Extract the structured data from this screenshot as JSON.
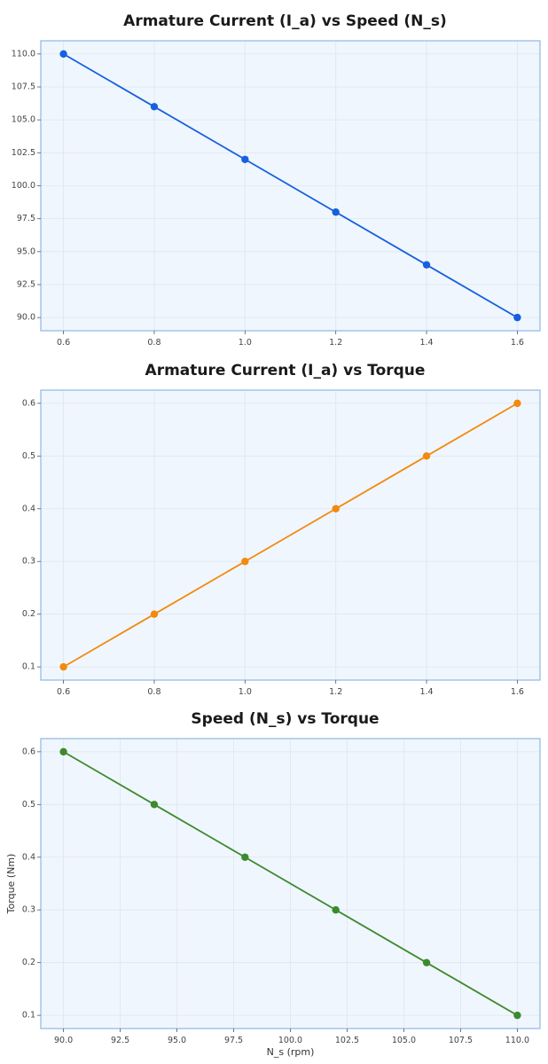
{
  "chart_data": [
    {
      "type": "line",
      "title": "Armature Current (I_a) vs Speed (N_s)",
      "xlabel": "",
      "ylabel": "",
      "x": [
        0.6,
        0.8,
        1.0,
        1.2,
        1.4,
        1.6
      ],
      "series": [
        {
          "values": [
            110.0,
            106.0,
            102.0,
            98.0,
            94.0,
            90.0
          ],
          "color": "#1560e0"
        }
      ],
      "xlim": [
        0.55,
        1.65
      ],
      "ylim": [
        89.0,
        111.0
      ],
      "xticks": [
        0.6,
        0.8,
        1.0,
        1.2,
        1.4,
        1.6
      ],
      "xtick_labels": [
        "0.6",
        "0.8",
        "1.0",
        "1.2",
        "1.4",
        "1.6"
      ],
      "yticks": [
        90.0,
        92.5,
        95.0,
        97.5,
        100.0,
        102.5,
        105.0,
        107.5,
        110.0
      ],
      "ytick_labels": [
        "90.0",
        "92.5",
        "95.0",
        "97.5",
        "100.0",
        "102.5",
        "105.0",
        "107.5",
        "110.0"
      ],
      "grid": true
    },
    {
      "type": "line",
      "title": "Armature Current (I_a) vs Torque",
      "xlabel": "",
      "ylabel": "",
      "x": [
        0.6,
        0.8,
        1.0,
        1.2,
        1.4,
        1.6
      ],
      "series": [
        {
          "values": [
            0.1,
            0.2,
            0.3,
            0.4,
            0.5,
            0.6
          ],
          "color": "#f28a0e"
        }
      ],
      "xlim": [
        0.55,
        1.65
      ],
      "ylim": [
        0.075,
        0.625
      ],
      "xticks": [
        0.6,
        0.8,
        1.0,
        1.2,
        1.4,
        1.6
      ],
      "xtick_labels": [
        "0.6",
        "0.8",
        "1.0",
        "1.2",
        "1.4",
        "1.6"
      ],
      "yticks": [
        0.1,
        0.2,
        0.3,
        0.4,
        0.5,
        0.6
      ],
      "ytick_labels": [
        "0.1",
        "0.2",
        "0.3",
        "0.4",
        "0.5",
        "0.6"
      ],
      "grid": true
    },
    {
      "type": "line",
      "title": "Speed (N_s) vs Torque",
      "xlabel": "N_s (rpm)",
      "ylabel": "Torque (Nm)",
      "x": [
        90.0,
        94.0,
        98.0,
        102.0,
        106.0,
        110.0
      ],
      "series": [
        {
          "values": [
            0.6,
            0.5,
            0.4,
            0.3,
            0.2,
            0.1
          ],
          "color": "#3c8a2e"
        }
      ],
      "xlim": [
        89.0,
        111.0
      ],
      "ylim": [
        0.075,
        0.625
      ],
      "xticks": [
        90.0,
        92.5,
        95.0,
        97.5,
        100.0,
        102.5,
        105.0,
        107.5,
        110.0
      ],
      "xtick_labels": [
        "90.0",
        "92.5",
        "95.0",
        "97.5",
        "100.0",
        "102.5",
        "105.0",
        "107.5",
        "110.0"
      ],
      "yticks": [
        0.1,
        0.2,
        0.3,
        0.4,
        0.5,
        0.6
      ],
      "ytick_labels": [
        "0.1",
        "0.2",
        "0.3",
        "0.4",
        "0.5",
        "0.6"
      ],
      "grid": true
    }
  ]
}
